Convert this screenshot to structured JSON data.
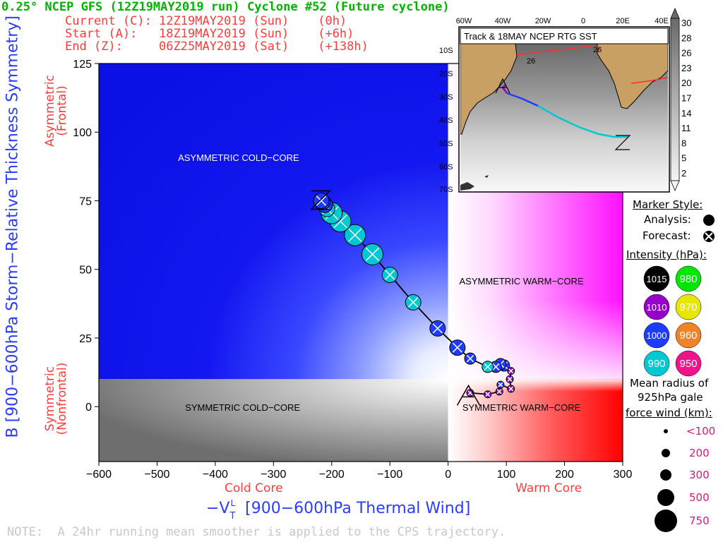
{
  "header": {
    "title": "0.25° NCEP GFS (12Z19MAY2019 run) Cyclone #52 (Future cyclone)",
    "current": "Current (C): 12Z19MAY2019 (Sun)    (0h)",
    "start": "Start (A):   18Z19MAY2019 (Sun)    (+6h)",
    "end": "End (Z):     06Z25MAY2019 (Sat)    (+138h)"
  },
  "axes": {
    "x_title": "−V",
    "x_title_sup": "L",
    "x_title_sub": "T",
    "x_title_rest": " [900−600hPa Thermal Wind]",
    "y_title": "B [900−600hPa Storm−Relative Thickness Symmetry]",
    "x_left": "Cold Core",
    "x_right": "Warm Core",
    "y_top_1": "Asymmetric",
    "y_top_2": "(Frontal)",
    "y_bottom_1": "Symmetric",
    "y_bottom_2": "(Nonfrontal)"
  },
  "regions": {
    "acc": "ASYMMETRIC COLD−CORE",
    "awc": "ASYMMETRIC WARM−CORE",
    "scc": "SYMMETRIC COLD−CORE",
    "swc": "SYMMETRIC WARM−CORE"
  },
  "note": "NOTE:  A 24hr running mean smoother is applied to the CPS trajectory.",
  "inset": {
    "title": "Track & 18MAY NCEP RTG SST",
    "lon_labels": [
      "60W",
      "40W",
      "20W",
      "0",
      "20E",
      "40E"
    ],
    "lat_labels": [
      "10S",
      "20S",
      "30S",
      "40S",
      "50S",
      "60S",
      "70S"
    ],
    "contour_labels": [
      "26",
      "26"
    ],
    "colorbar_labels": [
      "30",
      "28",
      "26",
      "23",
      "20",
      "17",
      "14",
      "11",
      "8",
      "5",
      "2"
    ]
  },
  "legend": {
    "marker_style": "Marker Style:",
    "analysis": "Analysis:",
    "forecast": "Forecast:",
    "intensity": "Intensity (hPa):",
    "intensities": [
      {
        "label": "1015",
        "color": "#000000"
      },
      {
        "label": "980",
        "color": "#00e600"
      },
      {
        "label": "1010",
        "color": "#9600c8"
      },
      {
        "label": "970",
        "color": "#e6e600"
      },
      {
        "label": "1000",
        "color": "#1e3cff"
      },
      {
        "label": "960",
        "color": "#f08228"
      },
      {
        "label": "990",
        "color": "#00c8d2"
      },
      {
        "label": "950",
        "color": "#f0148c"
      }
    ],
    "radius_title_1": "Mean radius of",
    "radius_title_2": "925hPa gale",
    "radius_title_3": "force wind (km):",
    "radii": [
      "<100",
      "200",
      "300",
      "500",
      "750"
    ]
  },
  "chart_data": {
    "type": "scatter",
    "xlabel": "−V_T^L [900−600hPa Thermal Wind]",
    "ylabel": "B [900−600hPa Storm−Relative Thickness Symmetry]",
    "xlim": [
      -600,
      300
    ],
    "ylim": [
      -20,
      125
    ],
    "xticks": [
      -600,
      -500,
      -400,
      -300,
      -200,
      -100,
      0,
      100,
      200,
      300
    ],
    "yticks": [
      0,
      25,
      50,
      75,
      100,
      125
    ],
    "start_label": "A",
    "end_label": "Z",
    "start_point": [
      35,
      1
    ],
    "end_point": [
      -218,
      75
    ],
    "track": [
      {
        "x": 38,
        "y": 5,
        "hpa": 1010,
        "r": 100
      },
      {
        "x": 68,
        "y": 4.5,
        "hpa": 1010,
        "r": 100
      },
      {
        "x": 88,
        "y": 5.5,
        "hpa": 1010,
        "r": 100
      },
      {
        "x": 90,
        "y": 8,
        "hpa": 1000,
        "r": 100
      },
      {
        "x": 108,
        "y": 6.5,
        "hpa": 1010,
        "r": 100
      },
      {
        "x": 106,
        "y": 10,
        "hpa": 1010,
        "r": 100
      },
      {
        "x": 108,
        "y": 13,
        "hpa": 1010,
        "r": 100
      },
      {
        "x": 96,
        "y": 15,
        "hpa": 1000,
        "r": 200
      },
      {
        "x": 90,
        "y": 15.5,
        "hpa": 1000,
        "r": 200
      },
      {
        "x": 82,
        "y": 14.5,
        "hpa": 1000,
        "r": 200
      },
      {
        "x": 68,
        "y": 14.5,
        "hpa": 990,
        "r": 200
      },
      {
        "x": 38,
        "y": 17.5,
        "hpa": 1000,
        "r": 200
      },
      {
        "x": 16,
        "y": 21.5,
        "hpa": 1000,
        "r": 300
      },
      {
        "x": -18,
        "y": 28.5,
        "hpa": 1000,
        "r": 300
      },
      {
        "x": -60,
        "y": 38,
        "hpa": 990,
        "r": 300
      },
      {
        "x": -100,
        "y": 48,
        "hpa": 990,
        "r": 300
      },
      {
        "x": -130,
        "y": 55.5,
        "hpa": 990,
        "r": 500
      },
      {
        "x": -160,
        "y": 62.5,
        "hpa": 990,
        "r": 500
      },
      {
        "x": -185,
        "y": 67.5,
        "hpa": 990,
        "r": 500
      },
      {
        "x": -200,
        "y": 70.5,
        "hpa": 990,
        "r": 500
      },
      {
        "x": -208,
        "y": 72,
        "hpa": 990,
        "r": 300
      },
      {
        "x": -212,
        "y": 73.5,
        "hpa": 1000,
        "r": 300
      },
      {
        "x": -216,
        "y": 74.5,
        "hpa": 1000,
        "r": 300
      },
      {
        "x": -218,
        "y": 75,
        "hpa": 1000,
        "r": 300
      }
    ]
  }
}
